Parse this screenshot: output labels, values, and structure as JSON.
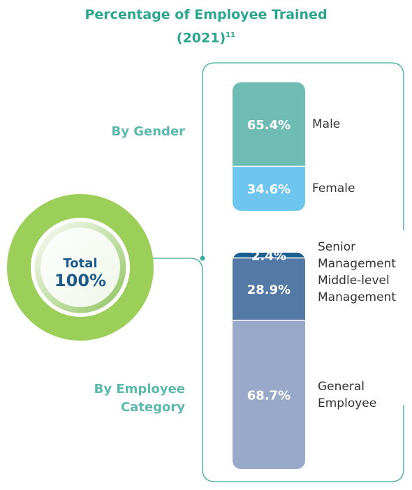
{
  "chart_data": {
    "type": "stacked-bar",
    "title": "Percentage of Employee Trained (2021)",
    "title_note": "11",
    "center_label": "Total",
    "center_value": 100,
    "center_value_label": "100%",
    "groups": [
      {
        "name": "By Gender",
        "categories": [
          "Male",
          "Female"
        ],
        "values": [
          65.4,
          34.6
        ],
        "value_labels": [
          "65.4%",
          "34.6%"
        ],
        "colors": [
          "#6fbcb5",
          "#6ec6ee"
        ]
      },
      {
        "name": "By Employee Category",
        "categories": [
          "Senior Management",
          "Middle-level Management",
          "General Employee"
        ],
        "values": [
          2.4,
          28.9,
          68.7
        ],
        "value_labels": [
          "2.4%",
          "28.9%",
          "68.7%"
        ],
        "colors": [
          "#1a5f8f",
          "#5479a6",
          "#98a9c9"
        ]
      }
    ]
  }
}
